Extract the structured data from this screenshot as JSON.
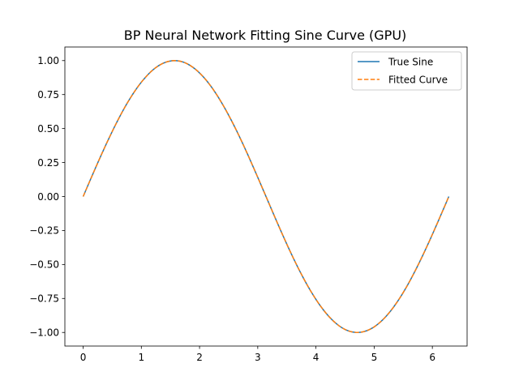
{
  "chart_data": {
    "type": "line",
    "title": "BP Neural Network Fitting Sine Curve (GPU)",
    "xlabel": "",
    "ylabel": "",
    "xlim": [
      -0.314,
      6.597
    ],
    "ylim": [
      -1.1,
      1.1
    ],
    "xticks": [
      0,
      1,
      2,
      3,
      4,
      5,
      6
    ],
    "xtick_labels": [
      "0",
      "1",
      "2",
      "3",
      "4",
      "5",
      "6"
    ],
    "yticks": [
      -1.0,
      -0.75,
      -0.5,
      -0.25,
      0.0,
      0.25,
      0.5,
      0.75,
      1.0
    ],
    "ytick_labels": [
      "−1.00",
      "−0.75",
      "−0.50",
      "−0.25",
      "0.00",
      "0.25",
      "0.50",
      "0.75",
      "1.00"
    ],
    "grid": false,
    "legend_position": "top-right",
    "x": [
      0.0,
      0.25,
      0.5,
      0.75,
      1.0,
      1.25,
      1.5,
      1.571,
      1.75,
      2.0,
      2.25,
      2.5,
      2.75,
      3.0,
      3.142,
      3.25,
      3.5,
      3.75,
      4.0,
      4.25,
      4.5,
      4.712,
      4.75,
      5.0,
      5.25,
      5.5,
      5.75,
      6.0,
      6.283
    ],
    "series": [
      {
        "name": "True Sine",
        "color": "#1f77b4",
        "style": "solid",
        "values": [
          0.0,
          0.247,
          0.479,
          0.682,
          0.841,
          0.949,
          0.997,
          1.0,
          0.984,
          0.909,
          0.778,
          0.598,
          0.382,
          0.141,
          0.0,
          -0.108,
          -0.351,
          -0.572,
          -0.757,
          -0.895,
          -0.978,
          -1.0,
          -0.999,
          -0.959,
          -0.859,
          -0.706,
          -0.508,
          -0.279,
          0.0
        ]
      },
      {
        "name": "Fitted Curve",
        "color": "#ff7f0e",
        "style": "dashed",
        "values": [
          0.0,
          0.247,
          0.479,
          0.682,
          0.841,
          0.949,
          0.997,
          1.0,
          0.984,
          0.909,
          0.778,
          0.598,
          0.382,
          0.141,
          0.0,
          -0.108,
          -0.351,
          -0.572,
          -0.757,
          -0.895,
          -0.978,
          -1.0,
          -0.999,
          -0.959,
          -0.859,
          -0.706,
          -0.508,
          -0.279,
          0.0
        ]
      }
    ]
  }
}
